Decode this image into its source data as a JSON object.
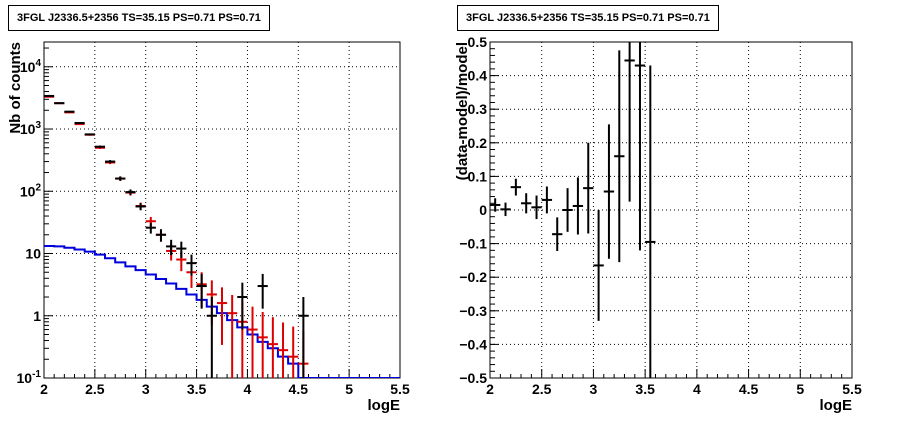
{
  "chart_data": [
    {
      "type": "step-histogram",
      "title": "3FGL J2336.5+2356 TS=35.15 PS=0.71 PS=0.71",
      "xlabel": "logE",
      "ylabel": "Nb of counts",
      "xlim": [
        2,
        5.5
      ],
      "ylim": [
        0.1,
        25000
      ],
      "yscale": "log",
      "grid": true,
      "x_ticks": [
        "2",
        "2.5",
        "3",
        "3.5",
        "4",
        "4.5",
        "5",
        "5.5"
      ],
      "y_ticks": [
        "10^{-1}",
        "1",
        "10",
        "10^{2}",
        "10^{3}",
        "10^{4}"
      ],
      "series": [
        {
          "color": "#000000",
          "style": "points",
          "x": [
            2.05,
            2.15,
            2.25,
            2.35,
            2.45,
            2.55,
            2.65,
            2.75,
            2.85,
            2.95,
            3.05,
            3.15,
            3.25,
            3.35,
            3.45,
            3.55,
            3.65,
            3.75,
            3.85,
            3.95,
            4.05,
            4.15,
            4.25,
            4.35,
            4.45,
            4.55
          ],
          "y": [
            3400,
            2600,
            1900,
            1250,
            820,
            520,
            300,
            160,
            97,
            57,
            26,
            20,
            13,
            12,
            7,
            3,
            1,
            1,
            1,
            2,
            1,
            3,
            1,
            1,
            1,
            1
          ],
          "yerr_low": [
            58,
            51,
            44,
            35,
            29,
            23,
            17,
            13,
            10,
            7.5,
            5.1,
            4.5,
            3.6,
            3.5,
            2.6,
            1.7,
            1,
            0,
            0,
            1.4,
            0,
            1.7,
            0,
            0,
            0,
            1
          ],
          "yerr_high": [
            58,
            51,
            44,
            35,
            29,
            23,
            17,
            13,
            10,
            7.5,
            5.1,
            4.5,
            3.6,
            3.5,
            2.6,
            1.7,
            1,
            0,
            0,
            1.4,
            0,
            1.7,
            0,
            0,
            0,
            1
          ],
          "visible": [
            true,
            true,
            true,
            true,
            true,
            true,
            true,
            true,
            true,
            true,
            true,
            true,
            true,
            true,
            true,
            true,
            true,
            false,
            false,
            true,
            false,
            true,
            false,
            false,
            false,
            true
          ]
        },
        {
          "color": "#dd0000",
          "style": "points",
          "x": [
            2.05,
            2.15,
            2.25,
            2.35,
            2.45,
            2.55,
            2.65,
            2.75,
            2.85,
            2.95,
            3.05,
            3.15,
            3.25,
            3.35,
            3.45,
            3.55,
            3.65,
            3.75,
            3.85,
            3.95,
            4.05,
            4.15,
            4.25,
            4.35,
            4.45,
            4.55
          ],
          "y": [
            3300,
            2600,
            1850,
            1200,
            810,
            500,
            290,
            160,
            95,
            58,
            33,
            20,
            11,
            8,
            5,
            3.2,
            2.2,
            1.6,
            1.1,
            0.8,
            0.6,
            0.45,
            0.35,
            0.28,
            0.22,
            0.17
          ],
          "yerr_low": [
            57,
            51,
            43,
            35,
            28,
            22,
            17,
            13,
            9.7,
            7.6,
            5.7,
            4.5,
            3.3,
            2.8,
            2.2,
            1.8,
            1.5,
            1.26,
            1.05,
            0.7,
            0.5,
            0.35,
            0.25,
            0.18,
            0.12,
            0.07
          ],
          "yerr_high": [
            57,
            51,
            43,
            35,
            28,
            22,
            17,
            13,
            9.7,
            7.6,
            5.7,
            4.5,
            3.3,
            2.8,
            2.2,
            1.8,
            1.5,
            1.26,
            1.05,
            0.9,
            0.8,
            0.7,
            0.6,
            0.5,
            0.45,
            0.4
          ]
        },
        {
          "color": "#0000dd",
          "style": "step",
          "edges": [
            2.0,
            2.1,
            2.2,
            2.3,
            2.4,
            2.5,
            2.6,
            2.7,
            2.8,
            2.9,
            3.0,
            3.1,
            3.2,
            3.3,
            3.4,
            3.5,
            3.6,
            3.7,
            3.8,
            3.9,
            4.0,
            4.1,
            4.2,
            4.3,
            4.4,
            4.5,
            4.6,
            5.5
          ],
          "values": [
            13.2,
            13.0,
            12.4,
            11.6,
            10.7,
            9.6,
            8.4,
            7.2,
            6.2,
            5.4,
            4.6,
            3.9,
            3.3,
            2.7,
            2.2,
            1.8,
            1.4,
            1.1,
            0.85,
            0.65,
            0.5,
            0.38,
            0.3,
            0.22,
            0.17,
            0.1,
            0.1
          ]
        }
      ]
    },
    {
      "type": "scatter",
      "title": "3FGL J2336.5+2356 TS=35.15 PS=0.71 PS=0.71",
      "xlabel": "logE",
      "ylabel": "(data-model)/model",
      "xlim": [
        2,
        5.5
      ],
      "ylim": [
        -0.5,
        0.5
      ],
      "grid": true,
      "x_ticks": [
        "2",
        "2.5",
        "3",
        "3.5",
        "4",
        "4.5",
        "5",
        "5.5"
      ],
      "y_ticks": [
        "−0.5",
        "−0.4",
        "−0.3",
        "−0.2",
        "−0.1",
        "0",
        "0.1",
        "0.2",
        "0.3",
        "0.4",
        "0.5"
      ],
      "series": [
        {
          "color": "#000000",
          "x": [
            2.05,
            2.15,
            2.25,
            2.35,
            2.45,
            2.55,
            2.65,
            2.75,
            2.85,
            2.95,
            3.05,
            3.15,
            3.25,
            3.35,
            3.45,
            3.55
          ],
          "y": [
            0.015,
            0.002,
            0.068,
            0.02,
            0.008,
            0.03,
            -0.072,
            0.0,
            0.012,
            0.065,
            -0.165,
            0.055,
            0.16,
            0.445,
            0.43,
            -0.095
          ],
          "yerr": [
            0.02,
            0.02,
            0.025,
            0.03,
            0.035,
            0.04,
            0.05,
            0.065,
            0.085,
            0.135,
            0.165,
            0.2,
            0.315,
            0.42,
            0.55,
            0.525
          ]
        }
      ]
    }
  ]
}
